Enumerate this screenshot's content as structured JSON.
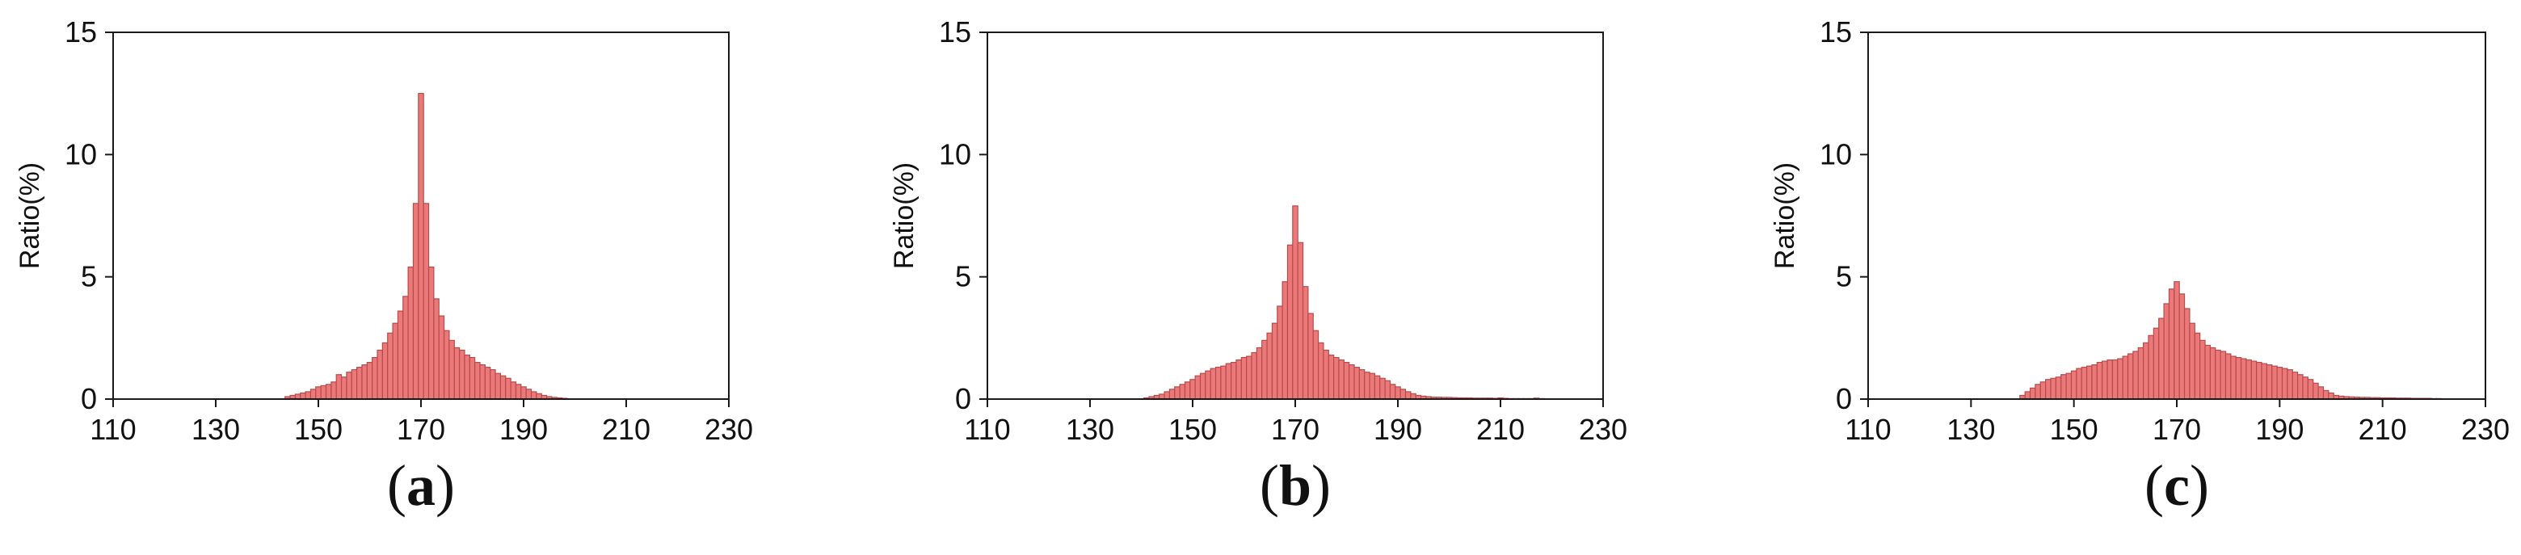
{
  "chart_data": [
    {
      "type": "bar",
      "ylabel": "Ratio(%)",
      "xlim": [
        110,
        230
      ],
      "ylim": [
        0,
        15
      ],
      "xticks": [
        110,
        130,
        150,
        170,
        190,
        210,
        230
      ],
      "yticks": [
        0,
        5,
        10,
        15
      ],
      "bar_width": 1,
      "caption": {
        "open": "(",
        "label": "a",
        "close": ")"
      },
      "x": [
        144,
        145,
        146,
        147,
        148,
        149,
        150,
        151,
        152,
        153,
        154,
        155,
        156,
        157,
        158,
        159,
        160,
        161,
        162,
        163,
        164,
        165,
        166,
        167,
        168,
        169,
        170,
        171,
        172,
        173,
        174,
        175,
        176,
        177,
        178,
        179,
        180,
        181,
        182,
        183,
        184,
        185,
        186,
        187,
        188,
        189,
        190,
        191,
        192,
        193,
        194,
        195,
        196,
        197,
        198
      ],
      "values": [
        0.1,
        0.15,
        0.2,
        0.25,
        0.3,
        0.4,
        0.5,
        0.55,
        0.6,
        0.7,
        1.0,
        0.9,
        1.1,
        1.2,
        1.3,
        1.4,
        1.5,
        1.7,
        2.0,
        2.3,
        2.7,
        3.1,
        3.6,
        4.2,
        5.4,
        8.0,
        12.5,
        8.0,
        5.4,
        4.1,
        3.4,
        2.8,
        2.4,
        2.1,
        2.0,
        1.8,
        1.7,
        1.5,
        1.4,
        1.3,
        1.2,
        1.05,
        0.95,
        0.85,
        0.7,
        0.6,
        0.5,
        0.4,
        0.3,
        0.22,
        0.15,
        0.1,
        0.07,
        0.05,
        0.03
      ]
    },
    {
      "type": "bar",
      "ylabel": "Ratio(%)",
      "xlim": [
        110,
        230
      ],
      "ylim": [
        0,
        15
      ],
      "xticks": [
        110,
        130,
        150,
        170,
        190,
        210,
        230
      ],
      "yticks": [
        0,
        5,
        10,
        15
      ],
      "bar_width": 1,
      "caption": {
        "open": "(",
        "label": "b",
        "close": ")"
      },
      "x": [
        141,
        142,
        143,
        144,
        145,
        146,
        147,
        148,
        149,
        150,
        151,
        152,
        153,
        154,
        155,
        156,
        157,
        158,
        159,
        160,
        161,
        162,
        163,
        164,
        165,
        166,
        167,
        168,
        169,
        170,
        171,
        172,
        173,
        174,
        175,
        176,
        177,
        178,
        179,
        180,
        181,
        182,
        183,
        184,
        185,
        186,
        187,
        188,
        189,
        190,
        191,
        192,
        193,
        194,
        195,
        196,
        197,
        198,
        199,
        200,
        201,
        202,
        203,
        204,
        205,
        206,
        207,
        208,
        209,
        210,
        211,
        212,
        213,
        214,
        215,
        216,
        217,
        218
      ],
      "values": [
        0.05,
        0.1,
        0.15,
        0.2,
        0.3,
        0.4,
        0.5,
        0.6,
        0.7,
        0.8,
        0.95,
        1.05,
        1.15,
        1.25,
        1.3,
        1.35,
        1.45,
        1.5,
        1.6,
        1.7,
        1.75,
        1.9,
        2.1,
        2.4,
        2.7,
        3.1,
        3.8,
        4.8,
        6.3,
        7.9,
        6.4,
        4.6,
        3.5,
        2.8,
        2.3,
        2.0,
        1.8,
        1.7,
        1.6,
        1.5,
        1.4,
        1.3,
        1.2,
        1.1,
        1.05,
        0.95,
        0.85,
        0.75,
        0.6,
        0.5,
        0.4,
        0.3,
        0.22,
        0.15,
        0.12,
        0.1,
        0.08,
        0.08,
        0.07,
        0.07,
        0.06,
        0.05,
        0.05,
        0.05,
        0.04,
        0.04,
        0.04,
        0.04,
        0.03,
        0.05,
        0.03,
        0.02,
        0.02,
        0.02,
        0.02,
        0.02,
        0.04,
        0.02
      ]
    },
    {
      "type": "bar",
      "ylabel": "Ratio(%)",
      "xlim": [
        110,
        230
      ],
      "ylim": [
        0,
        15
      ],
      "xticks": [
        110,
        130,
        150,
        170,
        190,
        210,
        230
      ],
      "yticks": [
        0,
        5,
        10,
        15
      ],
      "bar_width": 1,
      "caption": {
        "open": "(",
        "label": "c",
        "close": ")"
      },
      "x": [
        140,
        141,
        142,
        143,
        144,
        145,
        146,
        147,
        148,
        149,
        150,
        151,
        152,
        153,
        154,
        155,
        156,
        157,
        158,
        159,
        160,
        161,
        162,
        163,
        164,
        165,
        166,
        167,
        168,
        169,
        170,
        171,
        172,
        173,
        174,
        175,
        176,
        177,
        178,
        179,
        180,
        181,
        182,
        183,
        184,
        185,
        186,
        187,
        188,
        189,
        190,
        191,
        192,
        193,
        194,
        195,
        196,
        197,
        198,
        199,
        200,
        201,
        202,
        203,
        204,
        205,
        206,
        207,
        208,
        209,
        210,
        211,
        212,
        213,
        214,
        215,
        216,
        217,
        218,
        219,
        220,
        221
      ],
      "values": [
        0.15,
        0.3,
        0.45,
        0.6,
        0.7,
        0.8,
        0.85,
        0.9,
        1.0,
        1.05,
        1.15,
        1.25,
        1.3,
        1.35,
        1.4,
        1.5,
        1.55,
        1.6,
        1.6,
        1.65,
        1.75,
        1.85,
        1.95,
        2.1,
        2.3,
        2.6,
        2.9,
        3.3,
        3.9,
        4.5,
        4.8,
        4.3,
        3.7,
        3.1,
        2.7,
        2.4,
        2.2,
        2.1,
        2.0,
        1.95,
        1.85,
        1.75,
        1.7,
        1.65,
        1.6,
        1.55,
        1.5,
        1.45,
        1.4,
        1.35,
        1.3,
        1.25,
        1.2,
        1.1,
        1.0,
        0.9,
        0.8,
        0.65,
        0.5,
        0.35,
        0.25,
        0.15,
        0.12,
        0.1,
        0.09,
        0.08,
        0.07,
        0.07,
        0.06,
        0.06,
        0.05,
        0.05,
        0.05,
        0.04,
        0.04,
        0.04,
        0.03,
        0.03,
        0.03,
        0.03,
        0.02,
        0.02
      ]
    }
  ],
  "colors": {
    "bar_fill": "#ec7979",
    "bar_edge": "#b84a4a",
    "axis": "#1a1a1a",
    "text": "#111111"
  }
}
